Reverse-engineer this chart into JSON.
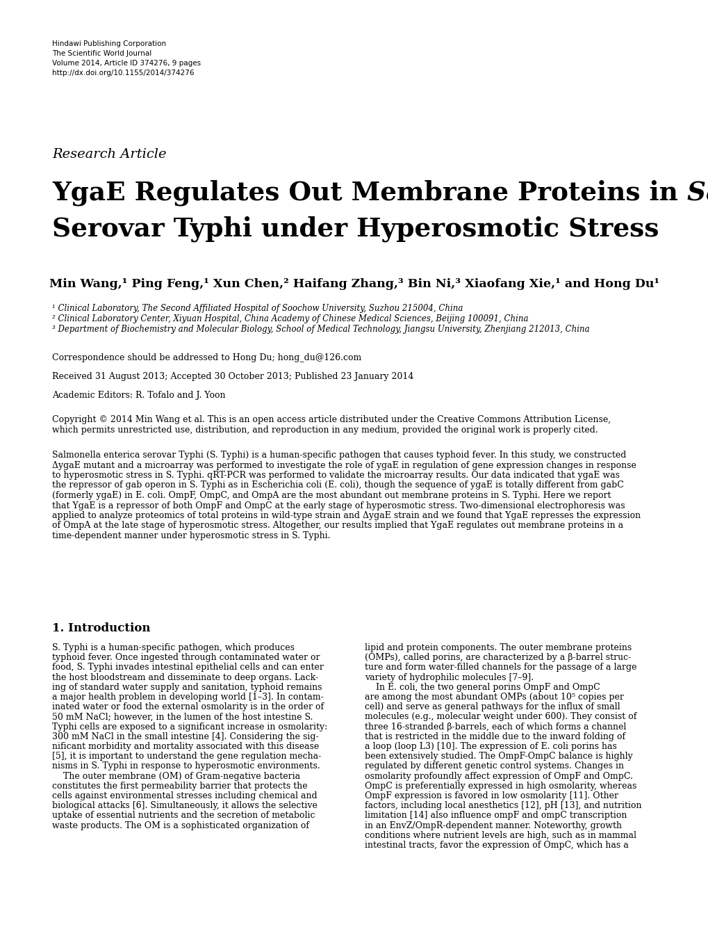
{
  "background_color": "#ffffff",
  "header_lines": [
    "Hindawi Publishing Corporation",
    "The Scientific World Journal",
    "Volume 2014, Article ID 374276, 9 pages",
    "http://dx.doi.org/10.1155/2014/374276"
  ],
  "research_article_label": "Research Article",
  "title_normal1": "YgaE Regulates Out Membrane Proteins in ",
  "title_italic1": "Salmonella enterica",
  "title_normal2": "Serovar Typhi under Hyperosmotic Stress",
  "authors_bold": "Min Wang,¹ Ping Feng,¹ Xun Chen,² Haifang Zhang,³ Bin Ni,³ Xiaofang Xie,¹ and Hong Du¹",
  "affil1": "¹ Clinical Laboratory, The Second Affiliated Hospital of Soochow University, Suzhou 215004, China",
  "affil2": "² Clinical Laboratory Center, Xiyuan Hospital, China Academy of Chinese Medical Sciences, Beijing 100091, China",
  "affil3": "³ Department of Biochemistry and Molecular Biology, School of Medical Technology, Jiangsu University, Zhenjiang 212013, China",
  "correspondence": "Correspondence should be addressed to Hong Du; hong_du@126.com",
  "received": "Received 31 August 2013; Accepted 30 October 2013; Published 23 January 2014",
  "editors": "Academic Editors: R. Tofalo and J. Yoon",
  "copyright1": "Copyright © 2014 Min Wang et al. This is an open access article distributed under the Creative Commons Attribution License,",
  "copyright2": "which permits unrestricted use, distribution, and reproduction in any medium, provided the original work is properly cited.",
  "abstract_lines": [
    "Salmonella enterica serovar Typhi (S. Typhi) is a human-specific pathogen that causes typhoid fever. In this study, we constructed",
    "ΔygaE mutant and a microarray was performed to investigate the role of ygaE in regulation of gene expression changes in response",
    "to hyperosmotic stress in S. Typhi. qRT-PCR was performed to validate the microarray results. Our data indicated that ygaE was",
    "the repressor of gab operon in S. Typhi as in Escherichia coli (E. coli), though the sequence of ygaE is totally different from gabC",
    "(formerly ygaE) in E. coli. OmpF, OmpC, and OmpA are the most abundant out membrane proteins in S. Typhi. Here we report",
    "that YgaE is a repressor of both OmpF and OmpC at the early stage of hyperosmotic stress. Two-dimensional electrophoresis was",
    "applied to analyze proteomics of total proteins in wild-type strain and ΔygaE strain and we found that YgaE represses the expression",
    "of OmpA at the late stage of hyperosmotic stress. Altogether, our results implied that YgaE regulates out membrane proteins in a",
    "time-dependent manner under hyperosmotic stress in S. Typhi."
  ],
  "intro_heading": "1. Introduction",
  "col1_lines": [
    "S. Typhi is a human-specific pathogen, which produces",
    "typhoid fever. Once ingested through contaminated water or",
    "food, S. Typhi invades intestinal epithelial cells and can enter",
    "the host bloodstream and disseminate to deep organs. Lack-",
    "ing of standard water supply and sanitation, typhoid remains",
    "a major health problem in developing world [1–3]. In contam-",
    "inated water or food the external osmolarity is in the order of",
    "50 mM NaCl; however, in the lumen of the host intestine S.",
    "Typhi cells are exposed to a significant increase in osmolarity:",
    "300 mM NaCl in the small intestine [4]. Considering the sig-",
    "nificant morbidity and mortality associated with this disease",
    "[5], it is important to understand the gene regulation mecha-",
    "nisms in S. Typhi in response to hyperosmotic environments.",
    "    The outer membrane (OM) of Gram-negative bacteria",
    "constitutes the first permeability barrier that protects the",
    "cells against environmental stresses including chemical and",
    "biological attacks [6]. Simultaneously, it allows the selective",
    "uptake of essential nutrients and the secretion of metabolic",
    "waste products. The OM is a sophisticated organization of"
  ],
  "col2_lines": [
    "lipid and protein components. The outer membrane proteins",
    "(OMPs), called porins, are characterized by a β-barrel struc-",
    "ture and form water-filled channels for the passage of a large",
    "variety of hydrophilic molecules [7–9].",
    "    In E. coli, the two general porins OmpF and OmpC",
    "are among the most abundant OMPs (about 10⁵ copies per",
    "cell) and serve as general pathways for the influx of small",
    "molecules (e.g., molecular weight under 600). They consist of",
    "three 16-stranded β-barrels, each of which forms a channel",
    "that is restricted in the middle due to the inward folding of",
    "a loop (loop L3) [10]. The expression of E. coli porins has",
    "been extensively studied. The OmpF-OmpC balance is highly",
    "regulated by different genetic control systems. Changes in",
    "osmolarity profoundly affect expression of OmpF and OmpC.",
    "OmpC is preferentially expressed in high osmolarity, whereas",
    "OmpF expression is favored in low osmolarity [11]. Other",
    "factors, including local anesthetics [12], pH [13], and nutrition",
    "limitation [14] also influence ompF and ompC transcription",
    "in an EnvZ/OmpR-dependent manner. Noteworthy, growth",
    "conditions where nutrient levels are high, such as in mammal",
    "intestinal tracts, favor the expression of OmpC, which has a"
  ]
}
